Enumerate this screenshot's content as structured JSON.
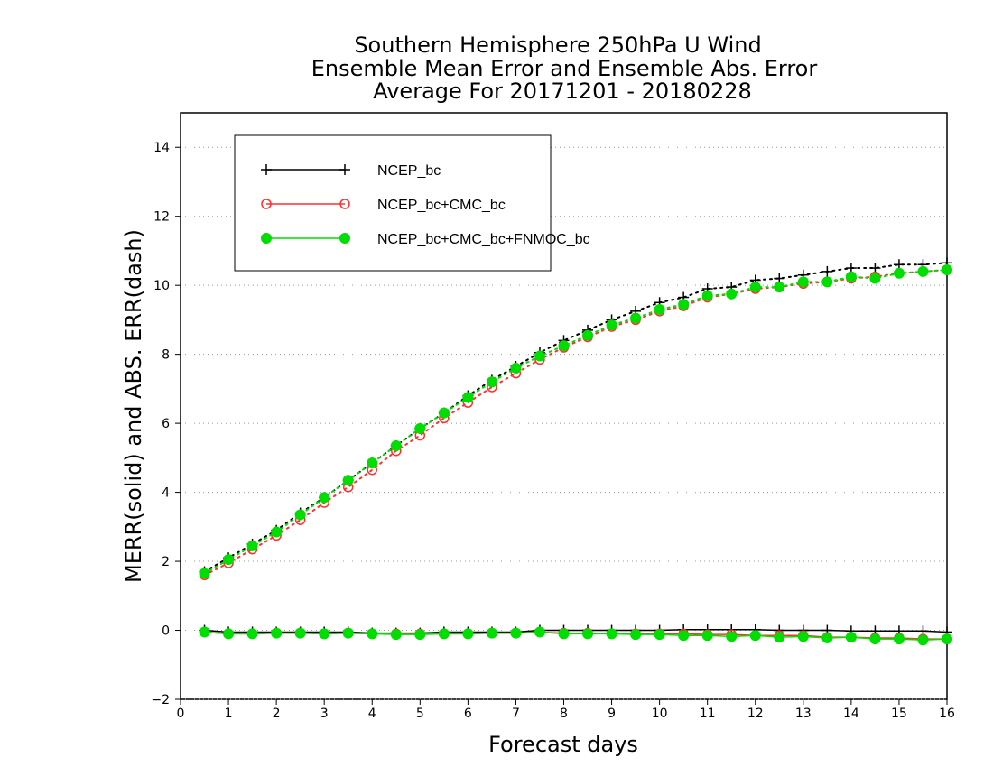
{
  "chart_data": {
    "type": "line",
    "title": [
      "Southern Hemisphere 250hPa U Wind",
      "Ensemble Mean Error and Ensemble Abs. Error",
      "Average For 20171201 - 20180228"
    ],
    "xlabel": "Forecast days",
    "ylabel": "MERR(solid) and ABS. ERR(dash)",
    "xlim": [
      0,
      16
    ],
    "ylim": [
      -2,
      15
    ],
    "xticks": [
      0,
      1,
      2,
      3,
      4,
      5,
      6,
      7,
      8,
      9,
      10,
      11,
      12,
      13,
      14,
      15,
      16
    ],
    "yticks": [
      -2,
      0,
      2,
      4,
      6,
      8,
      10,
      12,
      14
    ],
    "grid": "horizontal dotted",
    "legend_position": "top-left",
    "x": [
      0.5,
      1,
      1.5,
      2,
      2.5,
      3,
      3.5,
      4,
      4.5,
      5,
      5.5,
      6,
      6.5,
      7,
      7.5,
      8,
      8.5,
      9,
      9.5,
      10,
      10.5,
      11,
      11.5,
      12,
      12.5,
      13,
      13.5,
      14,
      14.5,
      15,
      15.5,
      16
    ],
    "series": [
      {
        "name": "NCEP_bc",
        "color": "#000000",
        "marker": "plus",
        "abs_err": [
          1.7,
          2.1,
          2.5,
          2.9,
          3.4,
          3.85,
          4.35,
          4.85,
          5.35,
          5.85,
          6.3,
          6.8,
          7.25,
          7.65,
          8.05,
          8.4,
          8.7,
          9.0,
          9.25,
          9.5,
          9.65,
          9.9,
          9.95,
          10.15,
          10.2,
          10.3,
          10.4,
          10.5,
          10.5,
          10.6,
          10.6,
          10.65
        ],
        "mean_err": [
          0.0,
          -0.05,
          -0.05,
          -0.05,
          -0.05,
          -0.05,
          -0.05,
          -0.08,
          -0.08,
          -0.08,
          -0.05,
          -0.05,
          -0.05,
          -0.05,
          0.0,
          0.0,
          0.0,
          0.0,
          0.0,
          0.0,
          0.02,
          0.02,
          0.02,
          0.02,
          0.0,
          0.0,
          0.0,
          -0.02,
          -0.02,
          -0.02,
          -0.02,
          -0.05
        ]
      },
      {
        "name": "NCEP_bc+CMC_bc",
        "color": "#ff3030",
        "marker": "open-circle",
        "abs_err": [
          1.6,
          1.95,
          2.35,
          2.75,
          3.2,
          3.7,
          4.15,
          4.65,
          5.2,
          5.65,
          6.15,
          6.6,
          7.05,
          7.45,
          7.85,
          8.2,
          8.5,
          8.8,
          9.0,
          9.25,
          9.4,
          9.65,
          9.75,
          9.9,
          9.95,
          10.05,
          10.1,
          10.2,
          10.25,
          10.35,
          10.4,
          10.45
        ],
        "mean_err": [
          -0.05,
          -0.1,
          -0.1,
          -0.08,
          -0.08,
          -0.1,
          -0.08,
          -0.1,
          -0.1,
          -0.1,
          -0.1,
          -0.1,
          -0.08,
          -0.08,
          -0.05,
          -0.08,
          -0.08,
          -0.1,
          -0.1,
          -0.1,
          -0.1,
          -0.12,
          -0.12,
          -0.15,
          -0.15,
          -0.15,
          -0.2,
          -0.2,
          -0.22,
          -0.22,
          -0.25,
          -0.25
        ]
      },
      {
        "name": "NCEP_bc+CMC_bc+FNMOC_bc",
        "color": "#00dd00",
        "marker": "filled-circle",
        "abs_err": [
          1.65,
          2.05,
          2.45,
          2.85,
          3.35,
          3.85,
          4.35,
          4.85,
          5.35,
          5.85,
          6.3,
          6.75,
          7.2,
          7.6,
          7.95,
          8.25,
          8.55,
          8.85,
          9.05,
          9.3,
          9.45,
          9.7,
          9.75,
          9.95,
          9.95,
          10.1,
          10.1,
          10.25,
          10.2,
          10.35,
          10.4,
          10.45
        ],
        "mean_err": [
          -0.05,
          -0.1,
          -0.1,
          -0.08,
          -0.08,
          -0.1,
          -0.08,
          -0.1,
          -0.12,
          -0.12,
          -0.1,
          -0.1,
          -0.08,
          -0.08,
          -0.05,
          -0.1,
          -0.1,
          -0.1,
          -0.12,
          -0.12,
          -0.15,
          -0.15,
          -0.18,
          -0.15,
          -0.2,
          -0.18,
          -0.22,
          -0.2,
          -0.25,
          -0.25,
          -0.28,
          -0.25
        ]
      }
    ]
  }
}
